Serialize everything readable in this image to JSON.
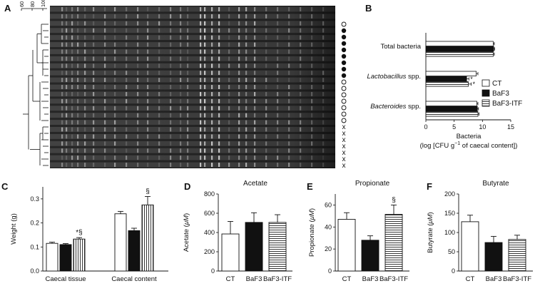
{
  "colors": {
    "ct": "#ffffff",
    "baf3": "#111111",
    "baf3_itf": "hatch-horizontal",
    "gel_bg": "#2a2a2a"
  },
  "panels": {
    "A": {
      "letter": "A",
      "scale_ticks": [
        "60",
        "80",
        "100"
      ],
      "lane_markers": [
        "○",
        "●",
        "●",
        "●",
        "●",
        "●",
        "●",
        "●",
        "●",
        "○",
        "○",
        "○",
        "○",
        "○",
        "○",
        "○",
        "x",
        "x",
        "x",
        "x",
        "x",
        "x",
        "x"
      ]
    },
    "B": {
      "letter": "B"
    },
    "C": {
      "letter": "C"
    },
    "D": {
      "letter": "D"
    },
    "E": {
      "letter": "E"
    },
    "F": {
      "letter": "F"
    }
  },
  "chart_data": [
    {
      "panel": "B",
      "type": "bar",
      "orientation": "horizontal",
      "categories": [
        "Total bacteria",
        "Lactobacillus spp.",
        "Bacteroides spp."
      ],
      "category_parts": [
        {
          "italic": "",
          "rest": "Total bacteria"
        },
        {
          "italic": "Lactobacillus",
          "rest": " spp."
        },
        {
          "italic": "Bacteroides",
          "rest": " spp."
        }
      ],
      "series": [
        {
          "name": "CT",
          "values": [
            11.9,
            8.9,
            9.0
          ],
          "errors": [
            0.2,
            0.3,
            0.2
          ],
          "marks": [
            "",
            "",
            ""
          ]
        },
        {
          "name": "BaF3",
          "values": [
            12.0,
            7.2,
            9.1
          ],
          "errors": [
            0.15,
            0.4,
            0.2
          ],
          "marks": [
            "",
            "*",
            ""
          ]
        },
        {
          "name": "BaF3-ITF",
          "values": [
            11.9,
            7.5,
            9.2
          ],
          "errors": [
            0.2,
            0.5,
            0.2
          ],
          "marks": [
            "",
            "*",
            ""
          ]
        }
      ],
      "xticks": [
        "0",
        "5",
        "10",
        "15"
      ],
      "xlim": [
        0,
        15
      ],
      "xlabel_line1": "Bacteria",
      "xlabel_line2_a": "(log [CFU g",
      "xlabel_line2_sup": "−1",
      "xlabel_line2_b": " of caecal content])",
      "legend": [
        "CT",
        "BaF3",
        "BaF3-ITF"
      ]
    },
    {
      "panel": "C",
      "type": "bar",
      "categories": [
        "Caecal tissue",
        "Caecal content"
      ],
      "series": [
        {
          "name": "CT",
          "values": [
            0.115,
            0.238
          ],
          "errors": [
            0.005,
            0.01
          ],
          "marks": [
            "",
            ""
          ]
        },
        {
          "name": "BaF3",
          "values": [
            0.11,
            0.168
          ],
          "errors": [
            0.004,
            0.01
          ],
          "marks": [
            "",
            ""
          ]
        },
        {
          "name": "BaF3-ITF",
          "values": [
            0.133,
            0.275
          ],
          "errors": [
            0.006,
            0.035
          ],
          "marks": [
            "*§",
            "§"
          ]
        }
      ],
      "ylabel": "Weight (g)",
      "yticks": [
        "0.0",
        "0.1",
        "0.2",
        "0.3"
      ],
      "ylim": [
        0,
        0.35
      ]
    },
    {
      "panel": "D",
      "type": "bar",
      "title": "Acetate",
      "categories": [
        "CT",
        "BaF3",
        "BaF3-ITF"
      ],
      "values": [
        385,
        505,
        505
      ],
      "errors": [
        130,
        100,
        80
      ],
      "marks": [
        "",
        "",
        ""
      ],
      "ylabel_a": "Acetate (",
      "ylabel_unit": "μM",
      "ylabel_b": ")",
      "yticks": [
        "0",
        "200",
        "400",
        "600",
        "800"
      ],
      "ylim": [
        0,
        800
      ]
    },
    {
      "panel": "E",
      "type": "bar",
      "title": "Propionate",
      "categories": [
        "CT",
        "BaF3",
        "BaF3-ITF"
      ],
      "values": [
        47,
        28,
        51.5
      ],
      "errors": [
        6,
        4,
        8.5
      ],
      "marks": [
        "",
        "",
        "§"
      ],
      "ylabel_a": "Propionate (",
      "ylabel_unit": "μM",
      "ylabel_b": ")",
      "yticks": [
        "0",
        "20",
        "40",
        "60"
      ],
      "ylim": [
        0,
        70
      ]
    },
    {
      "panel": "F",
      "type": "bar",
      "title": "Butyrate",
      "categories": [
        "CT",
        "BaF3",
        "BaF3-ITF"
      ],
      "values": [
        128,
        74,
        82
      ],
      "errors": [
        17,
        16,
        11
      ],
      "marks": [
        "",
        "",
        ""
      ],
      "ylabel_a": "Butyrate (",
      "ylabel_unit": "μM",
      "ylabel_b": ")",
      "yticks": [
        "0",
        "50",
        "100",
        "150",
        "200"
      ],
      "ylim": [
        0,
        200
      ]
    }
  ]
}
